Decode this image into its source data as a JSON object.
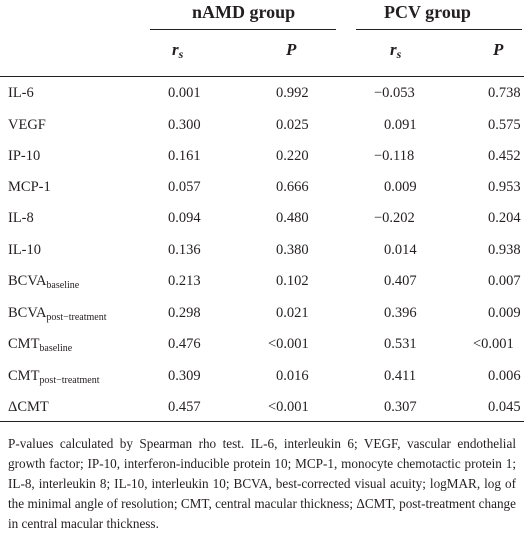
{
  "header": {
    "group1": "nAMD group",
    "group2": "PCV group",
    "rs_base": "r",
    "rs_sub": "s",
    "p_label": "P"
  },
  "rows": [
    {
      "label": "IL-6",
      "sub": "",
      "rs1": "0.001",
      "p1": "0.992",
      "rs2": "−0.053",
      "p2": "0.738"
    },
    {
      "label": "VEGF",
      "sub": "",
      "rs1": "0.300",
      "p1": "0.025",
      "rs2": "0.091",
      "p2": "0.575"
    },
    {
      "label": "IP-10",
      "sub": "",
      "rs1": "0.161",
      "p1": "0.220",
      "rs2": "−0.118",
      "p2": "0.452"
    },
    {
      "label": "MCP-1",
      "sub": "",
      "rs1": "0.057",
      "p1": "0.666",
      "rs2": "0.009",
      "p2": "0.953"
    },
    {
      "label": "IL-8",
      "sub": "",
      "rs1": "0.094",
      "p1": "0.480",
      "rs2": "−0.202",
      "p2": "0.204"
    },
    {
      "label": "IL-10",
      "sub": "",
      "rs1": "0.136",
      "p1": "0.380",
      "rs2": "0.014",
      "p2": "0.938"
    },
    {
      "label": "BCVA",
      "sub": "baseline",
      "rs1": "0.213",
      "p1": "0.102",
      "rs2": "0.407",
      "p2": "0.007"
    },
    {
      "label": "BCVA",
      "sub": "post−treatment",
      "rs1": "0.298",
      "p1": "0.021",
      "rs2": "0.396",
      "p2": "0.009"
    },
    {
      "label": "CMT",
      "sub": "baseline",
      "rs1": "0.476",
      "p1": "<0.001",
      "rs2": "0.531",
      "p2": "<0.001"
    },
    {
      "label": "CMT",
      "sub": "post−treatment",
      "rs1": "0.309",
      "p1": "0.016",
      "rs2": "0.411",
      "p2": "0.006"
    },
    {
      "label": "ΔCMT",
      "sub": "",
      "rs1": "0.457",
      "p1": "<0.001",
      "rs2": "0.307",
      "p2": "0.045"
    }
  ],
  "footnote": "P-values calculated by Spearman rho test. IL-6, interleukin 6; VEGF, vascular endothelial growth factor; IP-10, interferon-inducible protein 10; MCP-1, monocyte chemotactic protein 1; IL-8, interleukin 8; IL-10, interleukin 10; BCVA, best-corrected visual acuity; logMAR, log of the minimal angle of resolution; CMT, central macular thickness; ΔCMT, post-treatment change in central macular thickness."
}
